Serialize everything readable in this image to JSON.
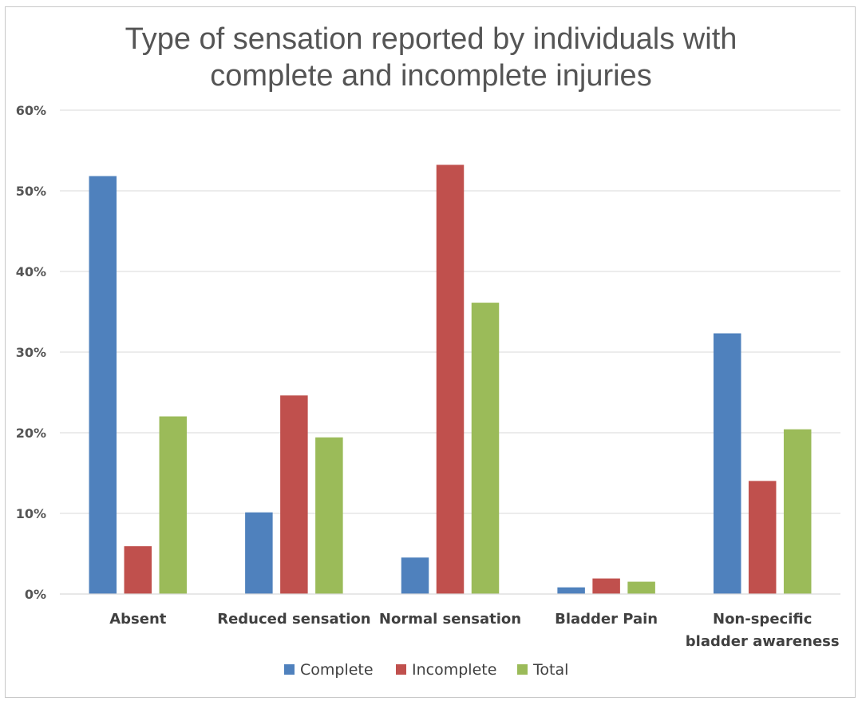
{
  "chart_data": {
    "type": "bar",
    "title_lines": [
      "Type of sensation reported by individuals with",
      "complete and incomplete injuries"
    ],
    "categories": [
      [
        "Absent"
      ],
      [
        "Reduced sensation"
      ],
      [
        "Normal sensation"
      ],
      [
        "Bladder Pain"
      ],
      [
        "Non-specific",
        "bladder awareness"
      ]
    ],
    "series": [
      {
        "name": "Complete",
        "color": "#4f81bd",
        "values": [
          51.8,
          10.1,
          4.5,
          0.8,
          32.3
        ]
      },
      {
        "name": "Incomplete",
        "color": "#c0504d",
        "values": [
          5.9,
          24.6,
          53.2,
          1.9,
          14.0
        ]
      },
      {
        "name": "Total",
        "color": "#9bbb59",
        "values": [
          22.0,
          19.4,
          36.1,
          1.5,
          20.4
        ]
      }
    ],
    "ylim": [
      0,
      60
    ],
    "yticks": [
      0,
      10,
      20,
      30,
      40,
      50,
      60
    ],
    "ytick_labels": [
      "0%",
      "10%",
      "20%",
      "30%",
      "40%",
      "50%",
      "60%"
    ],
    "grid": true,
    "legend_position": "bottom"
  }
}
